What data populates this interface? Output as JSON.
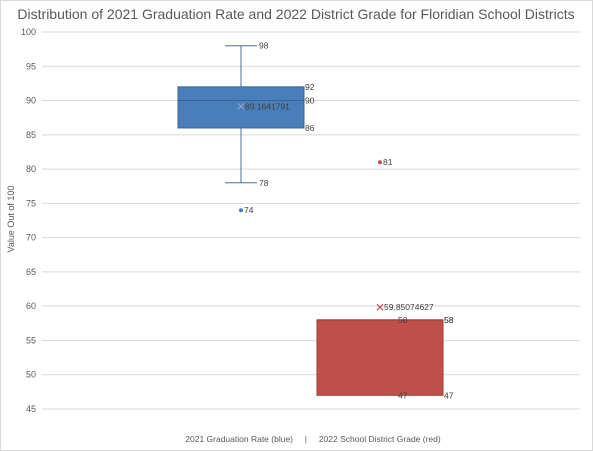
{
  "chart_data": {
    "type": "boxplot",
    "title": "Distribution of 2021 Graduation Rate and 2022 District Grade for Floridian School Districts",
    "ylabel": "Value Out of 100",
    "xlabel": "2021 Graduation Rate (blue)     |     2022 School District Grade (red)",
    "ylim": [
      45,
      100
    ],
    "yticks": [
      45,
      50,
      55,
      60,
      65,
      70,
      75,
      80,
      85,
      90,
      95,
      100
    ],
    "ytick_labels": [
      "45",
      "50",
      "55",
      "60",
      "65",
      "70",
      "75",
      "80",
      "85",
      "90",
      "95",
      "100"
    ],
    "grid": true,
    "series": [
      {
        "color": "#4a7ebb",
        "whisker_max": 98,
        "q3": 92,
        "median": 90,
        "q1": 86,
        "whisker_min": 78,
        "mean": 89.1641791,
        "outliers": [
          74
        ],
        "labels": {
          "whisker_max": "98",
          "q3": "92",
          "median": "90",
          "q1": "86",
          "whisker_min": "78",
          "mean": "89.1641791",
          "outliers": [
            "74"
          ]
        }
      },
      {
        "color": "#c0504d",
        "whisker_max": 58,
        "q3": 58,
        "median": 58,
        "q1": 47,
        "whisker_min": 47,
        "mean": 59.85074627,
        "outliers": [
          81
        ],
        "labels": {
          "whisker_max": "58",
          "q3": "58",
          "median": "58",
          "q1": "47",
          "whisker_min": "47",
          "mean": "59.85074627",
          "outliers": [
            "81"
          ]
        }
      }
    ]
  }
}
